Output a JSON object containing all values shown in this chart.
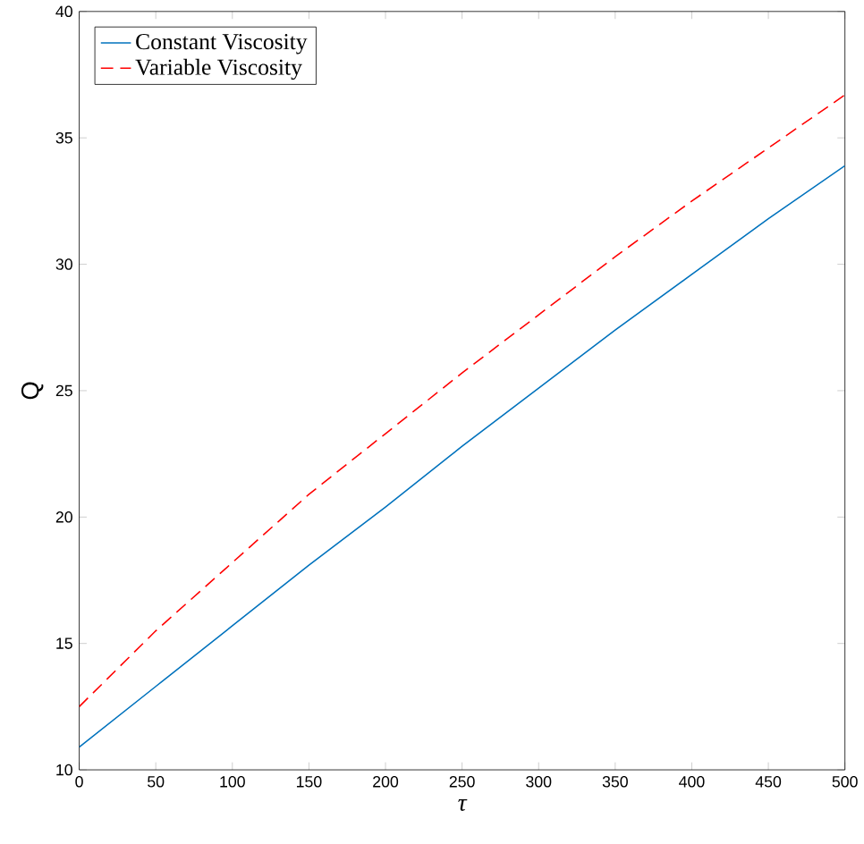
{
  "chart_data": {
    "type": "line",
    "xlabel": "τ",
    "ylabel": "Q",
    "x": [
      0,
      50,
      100,
      150,
      200,
      250,
      300,
      350,
      400,
      450,
      500
    ],
    "series": [
      {
        "name": "Constant Viscosity",
        "color": "#0072bd",
        "line_style": "solid",
        "values": [
          10.9,
          13.3,
          15.7,
          18.1,
          20.4,
          22.8,
          25.1,
          27.4,
          29.6,
          31.8,
          33.9
        ]
      },
      {
        "name": "Variable Viscosity",
        "color": "#ff0000",
        "line_style": "dashed",
        "values": [
          12.5,
          15.5,
          18.2,
          20.9,
          23.3,
          25.7,
          28.0,
          30.3,
          32.5,
          34.6,
          36.7
        ]
      }
    ],
    "xlim": [
      0,
      500
    ],
    "ylim": [
      10,
      40
    ],
    "xticks": [
      0,
      50,
      100,
      150,
      200,
      250,
      300,
      350,
      400,
      450,
      500
    ],
    "yticks": [
      10,
      15,
      20,
      25,
      30,
      35,
      40
    ],
    "grid": false,
    "legend": "top left",
    "marker": "none"
  }
}
